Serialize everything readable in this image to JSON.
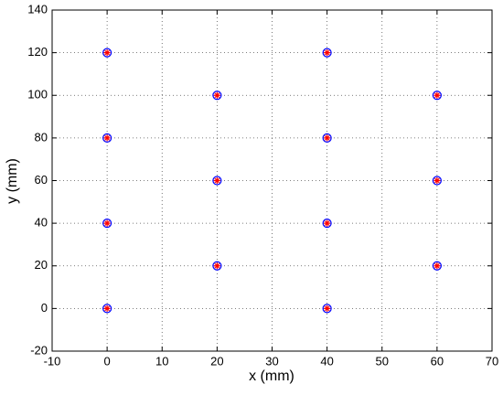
{
  "chart_data": {
    "type": "scatter",
    "x": [
      0,
      0,
      0,
      0,
      20,
      20,
      20,
      40,
      40,
      40,
      40,
      60,
      60,
      60
    ],
    "values": [
      120,
      80,
      40,
      0,
      100,
      60,
      20,
      120,
      80,
      40,
      0,
      100,
      60,
      20
    ],
    "color": "#ff0000",
    "edgecolor": "#0000ff",
    "xlabel": "x (mm)",
    "ylabel": "y (mm)",
    "xlim": [
      -10,
      70
    ],
    "ylim": [
      -20,
      140
    ],
    "xticks": [
      -10,
      0,
      10,
      20,
      30,
      40,
      50,
      60,
      70
    ],
    "yticks": [
      -20,
      0,
      20,
      40,
      60,
      80,
      100,
      120,
      140
    ],
    "grid": true
  }
}
